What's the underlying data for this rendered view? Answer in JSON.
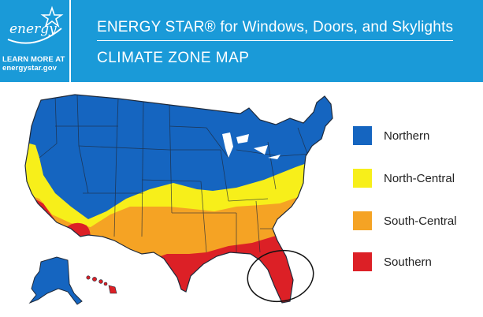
{
  "header": {
    "title": "ENERGY STAR®  for Windows, Doors, and Skylights",
    "subtitle": "CLIMATE ZONE MAP",
    "logo_text": "energy",
    "learn_more_line1": "LEARN MORE AT",
    "learn_more_line2": "energystar.gov"
  },
  "legend": [
    {
      "label": "Northern",
      "color": "#1565c0"
    },
    {
      "label": "North-Central",
      "color": "#f7ef1a"
    },
    {
      "label": "South-Central",
      "color": "#f5a324"
    },
    {
      "label": "Southern",
      "color": "#dc2026"
    }
  ],
  "colors": {
    "header_bg": "#1a9ad8",
    "boundary": "#1f2a3a",
    "highlight_circle": "#111111"
  },
  "annotations": {
    "highlight": "Florida circled"
  }
}
